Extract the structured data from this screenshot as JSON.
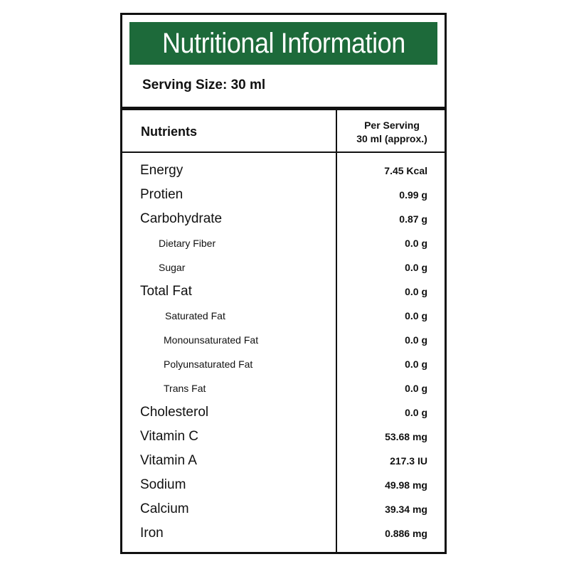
{
  "panel": {
    "title": "Nutritional Information",
    "serving_size": "Serving Size: 30 ml",
    "brand_color": "#1d6a3a"
  },
  "table": {
    "header_nutrients": "Nutrients",
    "header_per_serving_line1": "Per Serving",
    "header_per_serving_line2": "30 ml (approx.)",
    "rows": [
      {
        "name": "Energy",
        "value": "7.45 Kcal",
        "level": "main"
      },
      {
        "name": "Protien",
        "value": "0.99 g",
        "level": "main"
      },
      {
        "name": "Carbohydrate",
        "value": "0.87 g",
        "level": "main"
      },
      {
        "name": "Dietary Fiber",
        "value": "0.0 g",
        "level": "sub1"
      },
      {
        "name": "Sugar",
        "value": "0.0 g",
        "level": "sub1"
      },
      {
        "name": "Total Fat",
        "value": "0.0 g",
        "level": "main"
      },
      {
        "name": "Saturated Fat",
        "value": "0.0 g",
        "level": "sub2"
      },
      {
        "name": "Monounsaturated Fat",
        "value": "0.0 g",
        "level": "sub3"
      },
      {
        "name": "Polyunsaturated Fat",
        "value": "0.0 g",
        "level": "sub3"
      },
      {
        "name": "Trans Fat",
        "value": "0.0 g",
        "level": "sub3"
      },
      {
        "name": "Cholesterol",
        "value": "0.0 g",
        "level": "main"
      },
      {
        "name": "Vitamin C",
        "value": "53.68 mg",
        "level": "main"
      },
      {
        "name": "Vitamin A",
        "value": "217.3 IU",
        "level": "main"
      },
      {
        "name": "Sodium",
        "value": "49.98 mg",
        "level": "main"
      },
      {
        "name": "Calcium",
        "value": "39.34 mg",
        "level": "main"
      },
      {
        "name": "Iron",
        "value": "0.886 mg",
        "level": "main"
      }
    ]
  }
}
